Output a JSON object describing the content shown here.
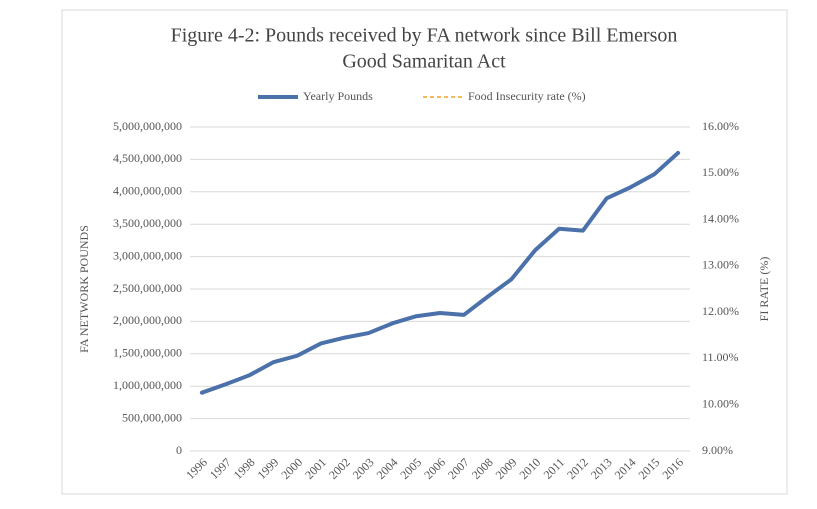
{
  "chart_data": {
    "type": "line",
    "title": "Figure 4-2: Pounds received by FA network since Bill Emerson",
    "subtitle": "Good Samaritan Act",
    "ylabel": "FA   NETWORK    POUNDS",
    "y2label": "FI   RATE   (%)",
    "categories": [
      "1996",
      "1997",
      "1998",
      "1999",
      "2000",
      "2001",
      "2002",
      "2003",
      "2004",
      "2005",
      "2006",
      "2007",
      "2008",
      "2009",
      "2010",
      "2011",
      "2012",
      "2013",
      "2014",
      "2015",
      "2016"
    ],
    "series": [
      {
        "name": "Yearly Pounds",
        "color": "#4a71aa",
        "values": [
          900000000,
          1030000000,
          1170000000,
          1370000000,
          1470000000,
          1660000000,
          1750000000,
          1820000000,
          1970000000,
          2080000000,
          2130000000,
          2100000000,
          2380000000,
          2650000000,
          3100000000,
          3430000000,
          3400000000,
          3900000000,
          4070000000,
          4270000000,
          4600000000
        ]
      },
      {
        "name": "Food Insecurity rate (%)",
        "color": "#f4a428",
        "dashed": true,
        "axis": "y2",
        "values": [
          null,
          null,
          null,
          null,
          null,
          null,
          null,
          null,
          null,
          null,
          null,
          null,
          null,
          null,
          null,
          null,
          null,
          null,
          null,
          null,
          null
        ]
      }
    ],
    "ylim": [
      0,
      5000000000
    ],
    "yticks": [
      0,
      {
        "value": 500000000,
        "label": "500,000,000"
      },
      {
        "value": 1000000000,
        "label": "1,000,000,000"
      },
      {
        "value": 1500000000,
        "label": "1,500,000,000"
      },
      {
        "value": 2000000000,
        "label": "2,000,000,000"
      },
      {
        "value": 2500000000,
        "label": "2,500,000,000"
      },
      {
        "value": 3000000000,
        "label": "3,000,000,000"
      },
      {
        "value": 3500000000,
        "label": "3,500,000,000"
      },
      {
        "value": 4000000000,
        "label": "4,000,000,000"
      },
      {
        "value": 4500000000,
        "label": "4,500,000,000"
      },
      {
        "value": 5000000000,
        "label": "5,000,000,000"
      }
    ],
    "y2lim": [
      9,
      16
    ],
    "y2ticks": [
      {
        "value": 9,
        "label": "9.00%"
      },
      {
        "value": 10,
        "label": "10.00%"
      },
      {
        "value": 11,
        "label": "11.00%"
      },
      {
        "value": 12,
        "label": "12.00%"
      },
      {
        "value": 13,
        "label": "13.00%"
      },
      {
        "value": 14,
        "label": "14.00%"
      },
      {
        "value": 15,
        "label": "15.00%"
      },
      {
        "value": 16,
        "label": "16.00%"
      }
    ],
    "grid": true,
    "legend": "top"
  }
}
